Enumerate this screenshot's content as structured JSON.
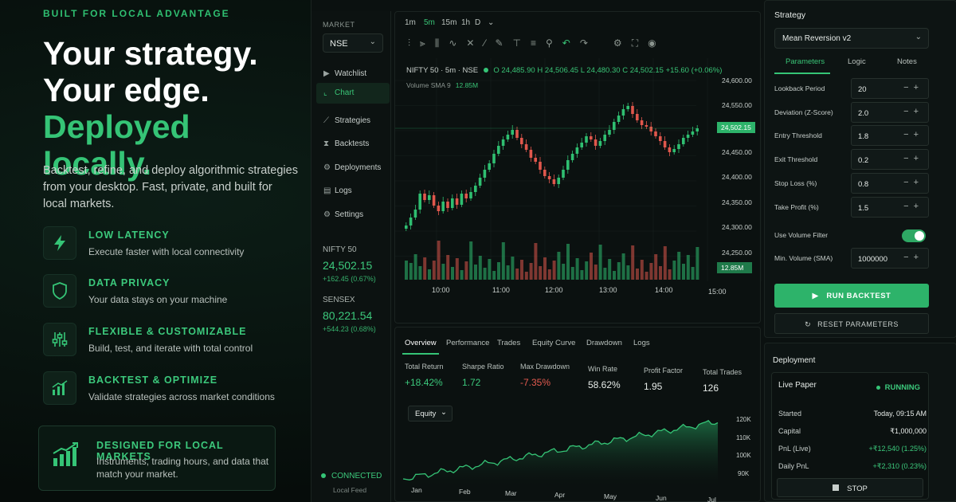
{
  "hero": {
    "eyebrow": "BUILT FOR LOCAL ADVANTAGE",
    "line1": "Your strategy.",
    "line2": "Your edge.",
    "line3": "Deployed locally.",
    "sub": "Backtest, refine, and deploy algorithmic strategies from your desktop. Fast, private, and built for local markets.",
    "features": [
      {
        "title": "LOW LATENCY",
        "desc": "Execute faster with local connectivity",
        "icon": "lightning-icon"
      },
      {
        "title": "DATA PRIVACY",
        "desc": "Your data stays on your machine",
        "icon": "shield-icon"
      },
      {
        "title": "FLEXIBLE & CUSTOMIZABLE",
        "desc": "Build, test, and iterate with total control",
        "icon": "sliders-icon"
      },
      {
        "title": "BACKTEST & OPTIMIZE",
        "desc": "Validate strategies across market conditions",
        "icon": "bar-chart-icon"
      }
    ],
    "local": {
      "title": "DESIGNED FOR LOCAL MARKETS",
      "desc": "Instruments, trading hours, and data that match your market.",
      "icon": "growth-chart-icon"
    }
  },
  "sidebar": {
    "market_label": "MARKET",
    "market_value": "NSE",
    "items": [
      {
        "label": "Watchlist",
        "icon": "play-square-icon"
      },
      {
        "label": "Chart",
        "icon": "line-chart-icon",
        "active": true
      },
      {
        "label": "Strategies",
        "icon": "strategy-icon"
      },
      {
        "label": "Backtests",
        "icon": "history-icon"
      },
      {
        "label": "Deployments",
        "icon": "rocket-icon"
      },
      {
        "label": "Logs",
        "icon": "file-icon"
      },
      {
        "label": "Settings",
        "icon": "gear-icon"
      }
    ],
    "indices": [
      {
        "name": "NIFTY 50",
        "value": "24,502.15",
        "change": "+162.45 (0.67%)"
      },
      {
        "name": "SENSEX",
        "value": "80,221.54",
        "change": "+544.23 (0.68%)"
      }
    ],
    "connection": {
      "status": "CONNECTED",
      "sub": "Local Feed"
    }
  },
  "chart": {
    "timeframes": [
      "1m",
      "5m",
      "15m",
      "1h",
      "D"
    ],
    "active_timeframe": "5m",
    "symbol": "NIFTY 50 · 5m · NSE",
    "open": "O 24,485.90",
    "high": "H 24,506.45",
    "low": "L 24,480.30",
    "close": "C 24,502.15",
    "delta": "+15.60 (+0.06%)",
    "volume_label": "Volume SMA 9",
    "volume_value": "12.85M",
    "price_ticks": [
      "24,600.00",
      "24,550.00",
      "24,500.00",
      "24,450.00",
      "24,400.00",
      "24,350.00",
      "24,300.00",
      "24,250.00"
    ],
    "last_price": "24,502.15",
    "last_volume": "12.85M",
    "time_ticks": [
      "10:00",
      "11:00",
      "12:00",
      "13:00",
      "14:00",
      "15:00"
    ],
    "colors": {
      "up": "#2fbf71",
      "down": "#e0574c"
    }
  },
  "results": {
    "tabs": [
      "Overview",
      "Performance",
      "Trades",
      "Equity Curve",
      "Drawdown",
      "Logs"
    ],
    "metrics": [
      {
        "label": "Total Return",
        "value": "+18.42%",
        "tone": "pos"
      },
      {
        "label": "Sharpe Ratio",
        "value": "1.72",
        "tone": "pos"
      },
      {
        "label": "Max Drawdown",
        "value": "-7.35%",
        "tone": "neg"
      },
      {
        "label": "Win Rate",
        "value": "58.62%",
        "tone": ""
      },
      {
        "label": "Profit Factor",
        "value": "1.95",
        "tone": ""
      },
      {
        "label": "Total Trades",
        "value": "126",
        "tone": ""
      }
    ],
    "equity_select": "Equity",
    "equity_y": [
      "120K",
      "110K",
      "100K",
      "90K"
    ],
    "equity_x": [
      "Jan",
      "Feb",
      "Mar",
      "Apr",
      "May",
      "Jun",
      "Jul"
    ]
  },
  "strategy": {
    "title": "Strategy",
    "selected": "Mean Reversion v2",
    "tabs": [
      "Parameters",
      "Logic",
      "Notes"
    ],
    "params": [
      {
        "label": "Lookback Period",
        "value": "20"
      },
      {
        "label": "Deviation (Z-Score)",
        "value": "2.0"
      },
      {
        "label": "Entry Threshold",
        "value": "1.8"
      },
      {
        "label": "Exit Threshold",
        "value": "0.2"
      },
      {
        "label": "Stop Loss (%)",
        "value": "0.8"
      },
      {
        "label": "Take Profit (%)",
        "value": "1.5"
      }
    ],
    "volume_filter_label": "Use Volume Filter",
    "min_volume_label": "Min. Volume (SMA)",
    "min_volume_value": "1000000",
    "run_label": "RUN BACKTEST",
    "reset_label": "RESET PARAMETERS"
  },
  "deployment": {
    "title": "Deployment",
    "name": "Live Paper",
    "status": "RUNNING",
    "rows": [
      {
        "label": "Started",
        "value": "Today, 09:15 AM",
        "tone": ""
      },
      {
        "label": "Capital",
        "value": "₹1,000,000",
        "tone": ""
      },
      {
        "label": "PnL (Live)",
        "value": "+₹12,540 (1.25%)",
        "tone": "pos"
      },
      {
        "label": "Daily PnL",
        "value": "+₹2,310 (0.23%)",
        "tone": "pos"
      }
    ],
    "stop_label": "STOP"
  }
}
